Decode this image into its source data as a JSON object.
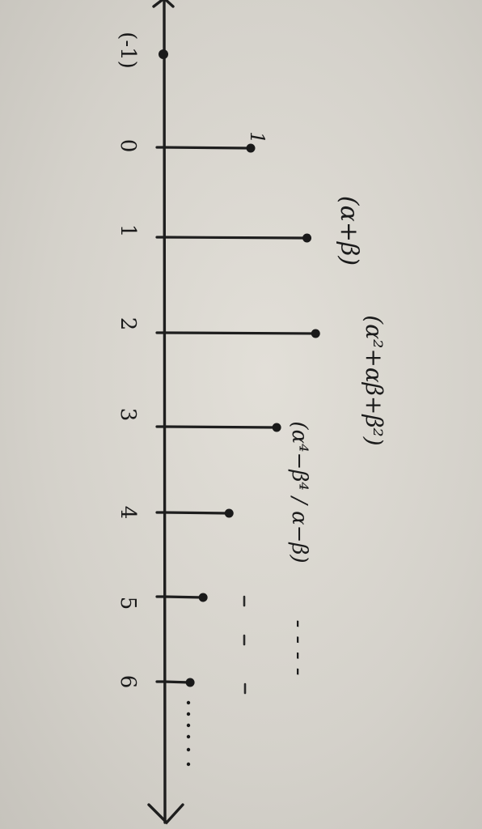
{
  "chart_data": {
    "type": "stem",
    "orientation": "image rotated 90 degrees clockwise; index axis runs top to bottom",
    "x": [
      0,
      1,
      2,
      3,
      4,
      5,
      6
    ],
    "values": [
      1,
      1.65,
      1.75,
      1.3,
      0.75,
      0.45,
      0.3
    ],
    "tick_labels": [
      "(-1)",
      "0",
      "1",
      "2",
      "3",
      "4",
      "5",
      "6"
    ],
    "stem_labels": [
      "1",
      "(α+β)",
      "(α²+αβ+β²)",
      "(α⁴−β⁴ / α−β)"
    ],
    "continuation": "- - - -"
  }
}
